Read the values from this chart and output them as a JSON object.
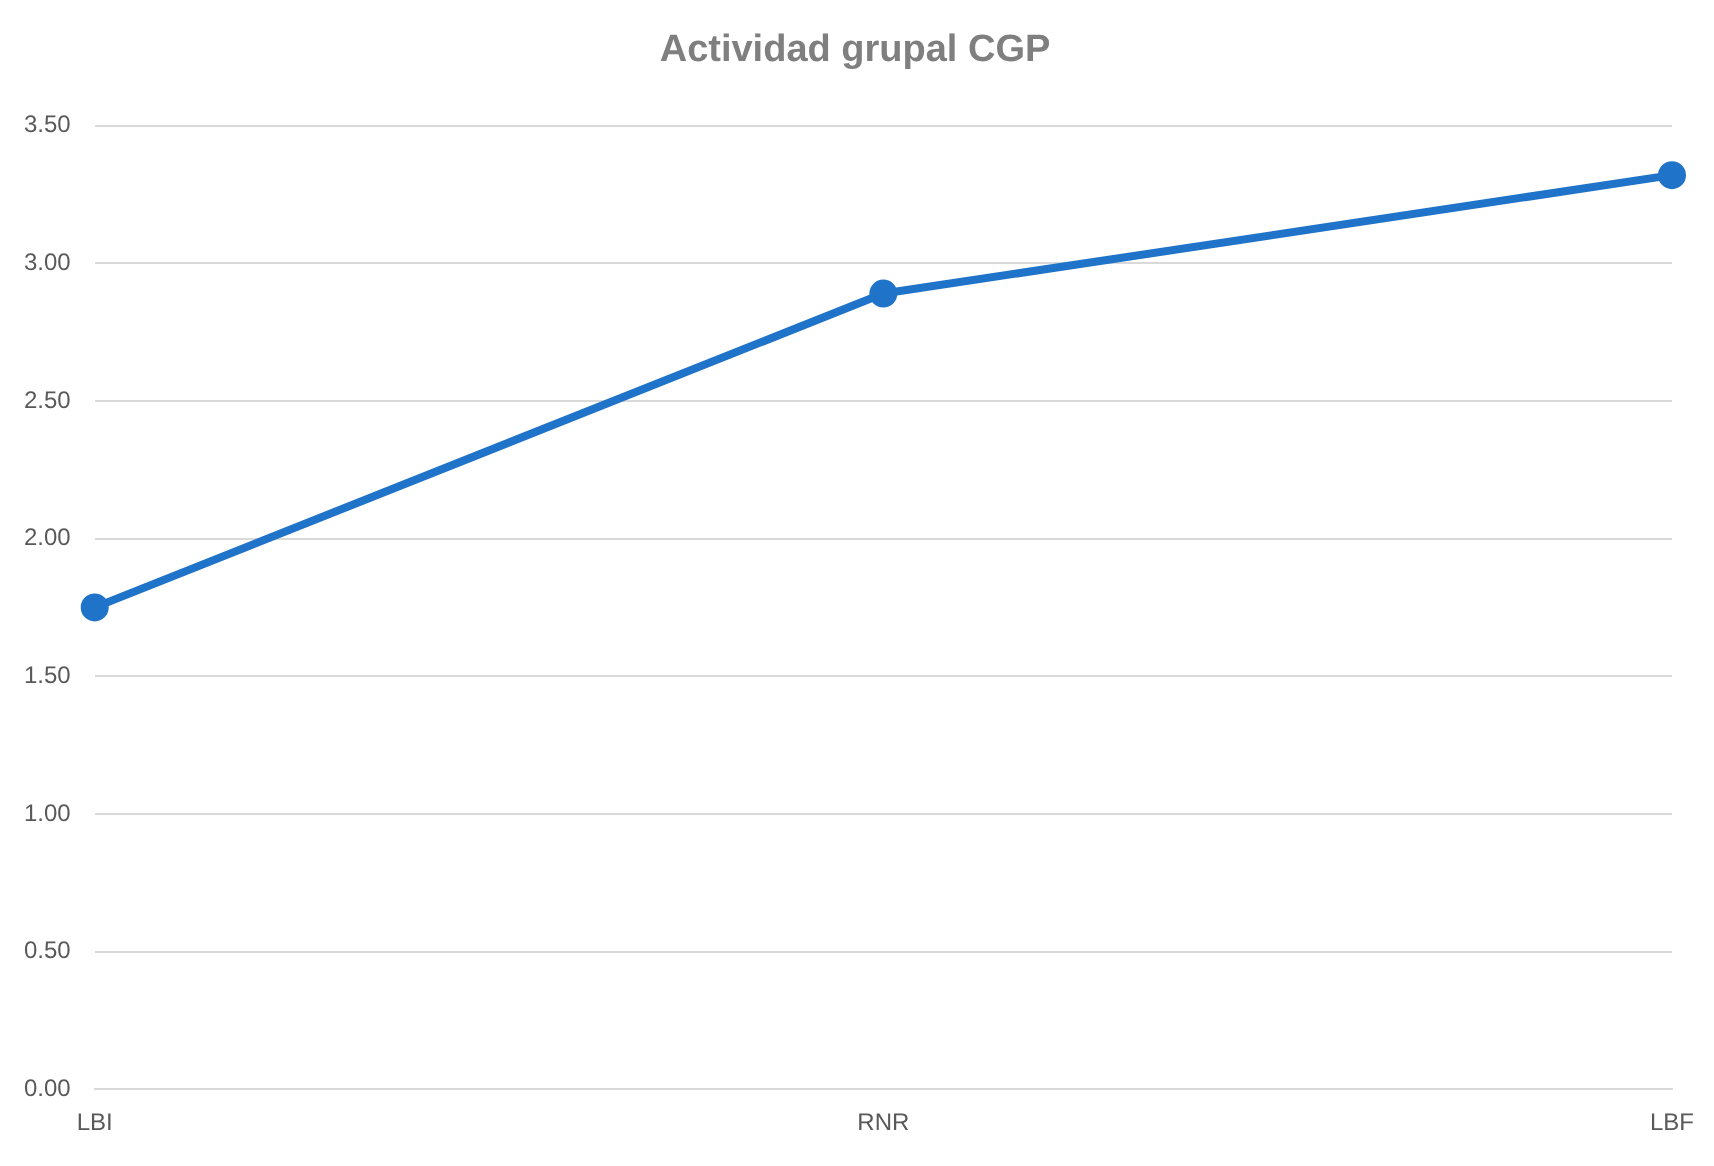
{
  "chart_data": {
    "type": "line",
    "title": "Actividad grupal CGP",
    "categories": [
      "LBI",
      "RNR",
      "LBF"
    ],
    "series": [
      {
        "color": "#1f73c8",
        "values": [
          1.75,
          2.89,
          3.32
        ]
      }
    ],
    "ylim": [
      0,
      3.5
    ],
    "yticks": [
      {
        "value": 0,
        "label": "0.00"
      },
      {
        "value": 0.5,
        "label": "0.50"
      },
      {
        "value": 1,
        "label": "1.00"
      },
      {
        "value": 1.5,
        "label": "1.50"
      },
      {
        "value": 2,
        "label": "2.00"
      },
      {
        "value": 2.5,
        "label": "2.50"
      },
      {
        "value": 3,
        "label": "3.00"
      },
      {
        "value": 3.5,
        "label": "3.50"
      }
    ],
    "grid": "y",
    "legend": false,
    "marker": "circle",
    "line_style": "solid"
  }
}
